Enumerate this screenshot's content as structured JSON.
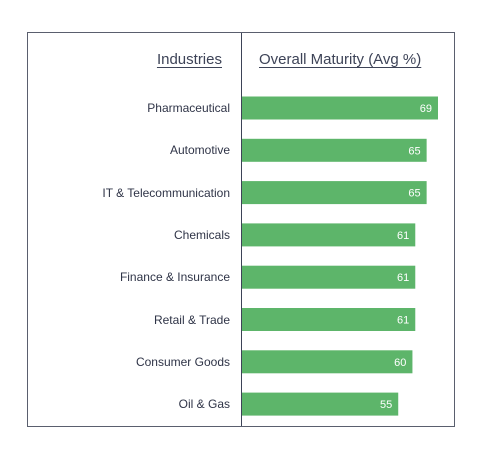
{
  "headers": {
    "left": "Industries",
    "right": "Overall Maturity (Avg %)"
  },
  "colors": {
    "bar": "#5db56a",
    "text": "#2f3447",
    "frame": "#5a5f6e"
  },
  "chart_data": {
    "type": "bar",
    "orientation": "horizontal",
    "categories": [
      "Pharmaceutical",
      "Automotive",
      "IT & Telecommunication",
      "Chemicals",
      "Finance & Insurance",
      "Retail & Trade",
      "Consumer Goods",
      "Oil & Gas"
    ],
    "values": [
      69,
      65,
      65,
      61,
      61,
      61,
      60,
      55
    ],
    "data_labels": [
      "69",
      "65",
      "65",
      "61",
      "61",
      "61",
      "60",
      "55"
    ],
    "grid": false
  }
}
